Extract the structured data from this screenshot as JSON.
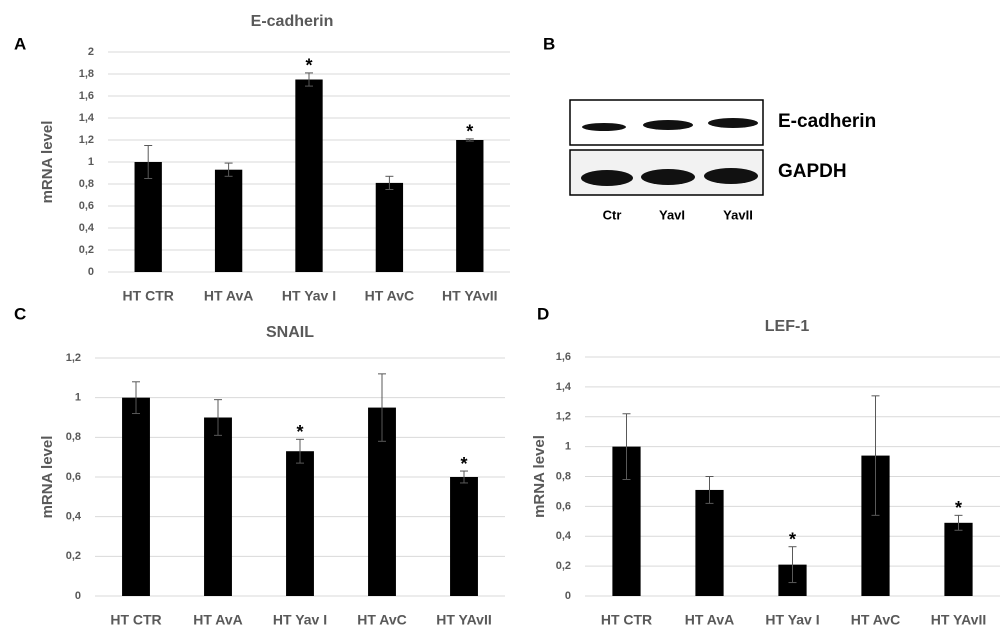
{
  "chart_data": [
    {
      "type": "bar",
      "panel": "A",
      "title": "E-cadherin",
      "y_label": "mRNA level",
      "categories": [
        "HT CTR",
        "HT AvA",
        "HT Yav I",
        "HT AvC",
        "HT YAvII"
      ],
      "values": [
        1.0,
        0.93,
        1.75,
        0.81,
        1.2
      ],
      "errors": [
        0.15,
        0.06,
        0.06,
        0.06,
        0.01
      ],
      "color": "#000000",
      "ylim": [
        0,
        2
      ],
      "yticks": [
        0,
        {
          "value": 0.2,
          "label": "0,2"
        },
        {
          "value": 0.4,
          "label": "0,4"
        },
        {
          "value": 0.6,
          "label": "0,6"
        },
        {
          "value": 0.8,
          "label": "0,8"
        },
        1,
        {
          "value": 1.2,
          "label": "1,2"
        },
        {
          "value": 1.4,
          "label": "1,4"
        },
        {
          "value": 1.6,
          "label": "1,6"
        },
        {
          "value": 1.8,
          "label": "1,8"
        },
        2
      ],
      "grid": true,
      "annotations": [
        {
          "text": "*",
          "x": "HT Yav I"
        },
        {
          "text": "*",
          "x": "HT YAvII"
        }
      ]
    },
    {
      "type": "bar",
      "panel": "C",
      "title": "SNAIL",
      "y_label": "mRNA level",
      "categories": [
        "HT CTR",
        "HT AvA",
        "HT Yav I",
        "HT AvC",
        "HT YAvII"
      ],
      "values": [
        1.0,
        0.9,
        0.73,
        0.95,
        0.6
      ],
      "errors": [
        0.08,
        0.09,
        0.06,
        0.17,
        0.03
      ],
      "color": "#000000",
      "ylim": [
        0,
        1.2
      ],
      "yticks": [
        0,
        {
          "value": 0.2,
          "label": "0,2"
        },
        {
          "value": 0.4,
          "label": "0,4"
        },
        {
          "value": 0.6,
          "label": "0,6"
        },
        {
          "value": 0.8,
          "label": "0,8"
        },
        1,
        {
          "value": 1.2,
          "label": "1,2"
        }
      ],
      "grid": true,
      "annotations": [
        {
          "text": "*",
          "x": "HT Yav I"
        },
        {
          "text": "*",
          "x": "HT YAvII"
        }
      ]
    },
    {
      "type": "bar",
      "panel": "D",
      "title": "LEF-1",
      "y_label": "mRNA level",
      "categories": [
        "HT CTR",
        "HT AvA",
        "HT Yav I",
        "HT AvC",
        "HT YAvII"
      ],
      "values": [
        1.0,
        0.71,
        0.21,
        0.94,
        0.49
      ],
      "errors": [
        0.22,
        0.09,
        0.12,
        0.4,
        0.05
      ],
      "color": "#000000",
      "ylim": [
        0,
        1.6
      ],
      "yticks": [
        0,
        {
          "value": 0.2,
          "label": "0,2"
        },
        {
          "value": 0.4,
          "label": "0,4"
        },
        {
          "value": 0.6,
          "label": "0,6"
        },
        {
          "value": 0.8,
          "label": "0,8"
        },
        1,
        {
          "value": 1.2,
          "label": "1,2"
        },
        {
          "value": 1.4,
          "label": "1,4"
        },
        {
          "value": 1.6,
          "label": "1,6"
        }
      ],
      "grid": true,
      "annotations": [
        {
          "text": "*",
          "x": "HT Yav I"
        },
        {
          "text": "*",
          "x": "HT YAvII"
        }
      ]
    }
  ],
  "blot": {
    "panel": "B",
    "bands": [
      "E-cadherin",
      "GAPDH"
    ],
    "lanes": [
      "Ctr",
      "YavI",
      "YavII"
    ]
  }
}
